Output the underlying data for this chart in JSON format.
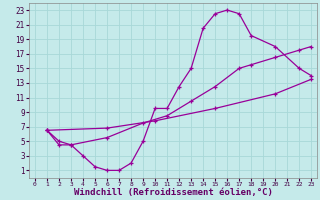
{
  "xlabel": "Windchill (Refroidissement éolien,°C)",
  "bg_color": "#c5eaea",
  "grid_color": "#a8d8d8",
  "line_color": "#990099",
  "xlim": [
    -0.5,
    23.5
  ],
  "ylim": [
    0,
    24
  ],
  "xticks": [
    0,
    1,
    2,
    3,
    4,
    5,
    6,
    7,
    8,
    9,
    10,
    11,
    12,
    13,
    14,
    15,
    16,
    17,
    18,
    19,
    20,
    21,
    22,
    23
  ],
  "yticks": [
    1,
    3,
    5,
    7,
    9,
    11,
    13,
    15,
    17,
    19,
    21,
    23
  ],
  "curve1_x": [
    1,
    2,
    3,
    4,
    5,
    6,
    7,
    8,
    9,
    10,
    11,
    12,
    13,
    14,
    15,
    16,
    17,
    18,
    20,
    22,
    23
  ],
  "curve1_y": [
    6.5,
    4.5,
    4.5,
    3.0,
    1.5,
    1.0,
    1.0,
    2.0,
    5.0,
    9.5,
    9.5,
    12.5,
    15.0,
    20.5,
    22.5,
    23.0,
    22.5,
    19.5,
    18.0,
    15.0,
    14.0
  ],
  "curve2_x": [
    1,
    2,
    3,
    6,
    9,
    11,
    13,
    15,
    17,
    18,
    20,
    22,
    23
  ],
  "curve2_y": [
    6.5,
    5.0,
    4.5,
    5.5,
    7.5,
    8.5,
    10.5,
    12.5,
    15.0,
    15.5,
    16.5,
    17.5,
    18.0
  ],
  "curve3_x": [
    1,
    6,
    10,
    15,
    20,
    23
  ],
  "curve3_y": [
    6.5,
    6.8,
    7.8,
    9.5,
    11.5,
    13.5
  ],
  "xlabel_fontsize": 6.5,
  "tick_fontsize": 5.5
}
